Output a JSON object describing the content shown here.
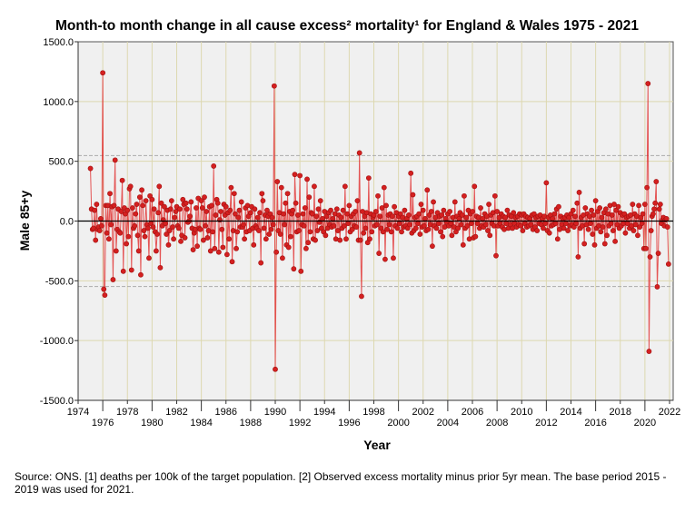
{
  "chart_data": {
    "type": "line",
    "title": "Month-to month change in all cause excess² mortality¹  for England & Wales 1975 - 2021",
    "xlabel": "Year",
    "ylabel": "Male 85+y",
    "xlim": [
      1974,
      2022.3
    ],
    "ylim": [
      -1500,
      1500
    ],
    "x_ticks": [
      "1974",
      "1976",
      "1978",
      "1980",
      "1982",
      "1984",
      "1986",
      "1988",
      "1990",
      "1992",
      "1994",
      "1996",
      "1998",
      "2000",
      "2002",
      "2004",
      "2006",
      "2008",
      "2010",
      "2012",
      "2014",
      "2016",
      "2018",
      "2020",
      "2022"
    ],
    "y_ticks": [
      "1500.0",
      "1000.0",
      "500.0",
      "0.0",
      "-500.0",
      "-1000.0",
      "-1500.0"
    ],
    "reference_lines": {
      "zero": 0,
      "upper_dashed": 548,
      "lower_dashed": -548
    },
    "grid": true,
    "series_color": "#e02020",
    "start_year": 1975,
    "series": [
      {
        "name": "Male 85+y monthly change",
        "monthly_values_by_year": [
          [
            440,
            100,
            -70,
            -60,
            90,
            -160,
            140,
            -70,
            -50,
            -80,
            20,
            -40
          ],
          [
            1240,
            -570,
            -620,
            130,
            -100,
            130,
            -150,
            230,
            -30,
            120,
            -490,
            130
          ],
          [
            510,
            -250,
            -70,
            100,
            -90,
            -100,
            80,
            340,
            -420,
            110,
            60,
            -190
          ],
          [
            90,
            -130,
            270,
            290,
            -410,
            110,
            -60,
            -40,
            60,
            140,
            -120,
            -250
          ],
          [
            200,
            -450,
            260,
            130,
            -80,
            -130,
            170,
            -30,
            -60,
            -310,
            210,
            -20
          ],
          [
            180,
            -50,
            100,
            -90,
            -250,
            -110,
            70,
            290,
            -390,
            150,
            -40,
            10
          ],
          [
            120,
            -20,
            -110,
            90,
            -200,
            -80,
            100,
            170,
            -50,
            -150,
            30,
            80
          ],
          [
            120,
            -40,
            -60,
            100,
            -170,
            -120,
            180,
            140,
            -140,
            150,
            100,
            -10
          ],
          [
            0,
            40,
            160,
            -60,
            -240,
            -100,
            -70,
            110,
            -210,
            190,
            -60,
            -70
          ],
          [
            170,
            110,
            -160,
            200,
            -40,
            80,
            -140,
            -80,
            120,
            -250,
            130,
            -90
          ],
          [
            460,
            -230,
            50,
            180,
            150,
            -260,
            10,
            80,
            -70,
            -220,
            140,
            50
          ],
          [
            120,
            -280,
            70,
            -150,
            90,
            280,
            -340,
            -80,
            230,
            60,
            -230,
            -90
          ],
          [
            30,
            90,
            -50,
            160,
            -50,
            -30,
            -150,
            110,
            -90,
            130,
            40,
            -80
          ],
          [
            70,
            120,
            -60,
            -200,
            100,
            -40,
            -60,
            30,
            -80,
            70,
            -350,
            230
          ],
          [
            170,
            -60,
            50,
            -150,
            90,
            40,
            -110,
            60,
            -70,
            30,
            -30,
            1130
          ],
          [
            -1240,
            -260,
            330,
            -80,
            70,
            -110,
            280,
            -310,
            60,
            -30,
            150,
            -200
          ],
          [
            230,
            -220,
            80,
            -130,
            60,
            90,
            -400,
            390,
            150,
            -90,
            50,
            -80
          ],
          [
            380,
            -420,
            -30,
            60,
            -40,
            110,
            -230,
            350,
            -180,
            200,
            -90,
            70
          ],
          [
            60,
            -150,
            290,
            -160,
            40,
            -80,
            100,
            -10,
            170,
            -60,
            20,
            -90
          ],
          [
            80,
            -120,
            40,
            -60,
            70,
            -30,
            90,
            -50,
            20,
            -40,
            60,
            -150
          ],
          [
            100,
            -80,
            50,
            -160,
            30,
            -60,
            90,
            -40,
            290,
            -150,
            60,
            -20
          ],
          [
            130,
            -90,
            40,
            -70,
            60,
            -40,
            80,
            -50,
            170,
            -160,
            570,
            -160
          ],
          [
            -630,
            80,
            -100,
            40,
            -60,
            70,
            -180,
            360,
            -150,
            60,
            -90,
            30
          ],
          [
            50,
            -40,
            80,
            -30,
            210,
            -270,
            40,
            -60,
            110,
            -90,
            280,
            -320
          ],
          [
            130,
            -70,
            50,
            -30,
            60,
            -90,
            40,
            -310,
            120,
            -40,
            70,
            -60
          ],
          [
            40,
            -20,
            60,
            -90,
            30,
            -50,
            90,
            -40,
            20,
            -60,
            50,
            -30
          ],
          [
            400,
            -100,
            220,
            -80,
            30,
            -60,
            40,
            -20,
            60,
            -110,
            140,
            -50
          ],
          [
            90,
            -40,
            20,
            -80,
            260,
            -70,
            50,
            -30,
            80,
            -210,
            160,
            -40
          ],
          [
            30,
            -60,
            70,
            -20,
            40,
            -90,
            50,
            -130,
            90,
            -50,
            20,
            -10
          ],
          [
            60,
            -40,
            80,
            -20,
            -120,
            30,
            -50,
            160,
            -90,
            40,
            -60,
            20
          ],
          [
            70,
            -30,
            50,
            -200,
            210,
            -60,
            30,
            -40,
            90,
            -150,
            60,
            -20
          ],
          [
            80,
            -140,
            290,
            -130,
            40,
            -20,
            30,
            -60,
            110,
            -40,
            20,
            -50
          ],
          [
            60,
            -30,
            40,
            -80,
            140,
            -120,
            50,
            -20,
            70,
            -40,
            210,
            -290
          ],
          [
            80,
            -40,
            30,
            -20,
            60,
            -50,
            40,
            -70,
            30,
            -20,
            90,
            -60
          ],
          [
            50,
            -30,
            40,
            -60,
            70,
            -20,
            30,
            -50,
            40,
            -30,
            60,
            -40
          ],
          [
            50,
            -80,
            60,
            -20,
            40,
            -50,
            30,
            -40,
            20,
            -30,
            50,
            -70
          ],
          [
            60,
            -50,
            30,
            -80,
            40,
            -20,
            50,
            -30,
            20,
            -60,
            40,
            -20
          ],
          [
            320,
            -80,
            30,
            -100,
            50,
            -40,
            20,
            -30,
            60,
            -20,
            100,
            -150
          ],
          [
            120,
            -70,
            40,
            -30,
            20,
            -60,
            30,
            -20,
            50,
            -80,
            30,
            -40
          ],
          [
            60,
            -30,
            90,
            -50,
            40,
            -20,
            150,
            -300,
            240,
            -60,
            30,
            -40
          ],
          [
            50,
            -190,
            110,
            -30,
            60,
            -70,
            40,
            -20,
            90,
            -110,
            50,
            -200
          ],
          [
            170,
            -60,
            80,
            -40,
            110,
            -90,
            30,
            -50,
            70,
            -190,
            100,
            -120
          ],
          [
            60,
            -40,
            130,
            -20,
            50,
            -80,
            140,
            -170,
            90,
            -30,
            120,
            -60
          ],
          [
            70,
            -40,
            50,
            -20,
            60,
            -100,
            30,
            -20,
            40,
            -60,
            50,
            -40
          ],
          [
            140,
            -80,
            60,
            -30,
            40,
            -120,
            130,
            -50,
            30,
            -20,
            60,
            -230
          ],
          [
            140,
            -230,
            280,
            1150,
            -1090,
            -300,
            -80,
            40,
            60,
            100,
            150,
            330
          ],
          [
            -550,
            -270,
            100,
            140,
            -20,
            10,
            30,
            -40,
            10,
            20,
            -50,
            -360
          ]
        ]
      }
    ]
  },
  "footnote": "Source: ONS. [1] deaths per 100k of the target population. [2] Observed excess mortality minus prior 5yr mean. The base period 2015 - 2019 was used for 2021."
}
